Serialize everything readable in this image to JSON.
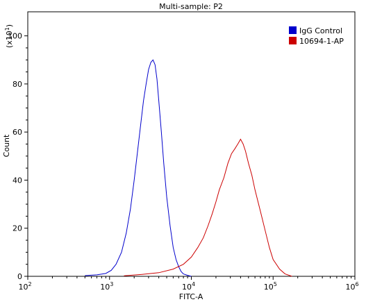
{
  "chart_data": {
    "type": "line",
    "title": "Multi-sample: P2",
    "xlabel": "FITC-A",
    "ylabel": "Count",
    "ylabel_multiplier": "(x10",
    "ylabel_multiplier_exp": "1",
    "x_scale": "log",
    "xlim": [
      100,
      1000000
    ],
    "ylim": [
      0,
      110
    ],
    "x_ticks": [
      {
        "value": 100,
        "base": "10",
        "exp": "2"
      },
      {
        "value": 1000,
        "base": "10",
        "exp": "3"
      },
      {
        "value": 10000,
        "base": "10",
        "exp": "4"
      },
      {
        "value": 100000,
        "base": "10",
        "exp": "5"
      },
      {
        "value": 1000000,
        "base": "10",
        "exp": "6"
      }
    ],
    "y_ticks": [
      0,
      20,
      40,
      60,
      80,
      100
    ],
    "grid": false,
    "legend_position": "top-right",
    "series": [
      {
        "name": "IgG Control",
        "color": "#0000cc",
        "x": [
          500,
          700,
          900,
          1050,
          1200,
          1400,
          1600,
          1800,
          2000,
          2200,
          2400,
          2600,
          2800,
          3000,
          3200,
          3400,
          3600,
          3800,
          4000,
          4300,
          4600,
          5000,
          5500,
          6000,
          6500,
          7000,
          7500,
          8000,
          9000,
          10000
        ],
        "values": [
          0.3,
          0.6,
          1.2,
          2.5,
          5.0,
          10.0,
          18.0,
          28.0,
          40.0,
          52.0,
          63.0,
          73.0,
          80.0,
          86.0,
          89.0,
          90.0,
          88.0,
          82.0,
          73.0,
          60.0,
          47.0,
          33.0,
          21.0,
          12.0,
          7.0,
          4.0,
          2.0,
          1.0,
          0.4,
          0.0
        ]
      },
      {
        "name": "10694-1-AP",
        "color": "#cc0000",
        "x": [
          1500,
          2500,
          4000,
          6000,
          8000,
          10000,
          12000,
          14000,
          16000,
          18000,
          20000,
          22000,
          25000,
          28000,
          31000,
          34000,
          37000,
          40000,
          43000,
          46000,
          50000,
          55000,
          60000,
          70000,
          80000,
          90000,
          100000,
          120000,
          140000,
          170000
        ],
        "values": [
          0.2,
          0.8,
          1.5,
          3.0,
          5.0,
          8.0,
          12.0,
          16.0,
          21.0,
          26.0,
          31.0,
          36.0,
          41.0,
          47.0,
          51.0,
          53.0,
          55.0,
          57.0,
          55.0,
          52.0,
          47.0,
          42.0,
          36.0,
          27.0,
          19.0,
          12.0,
          7.0,
          3.0,
          1.0,
          0.0
        ]
      }
    ]
  }
}
